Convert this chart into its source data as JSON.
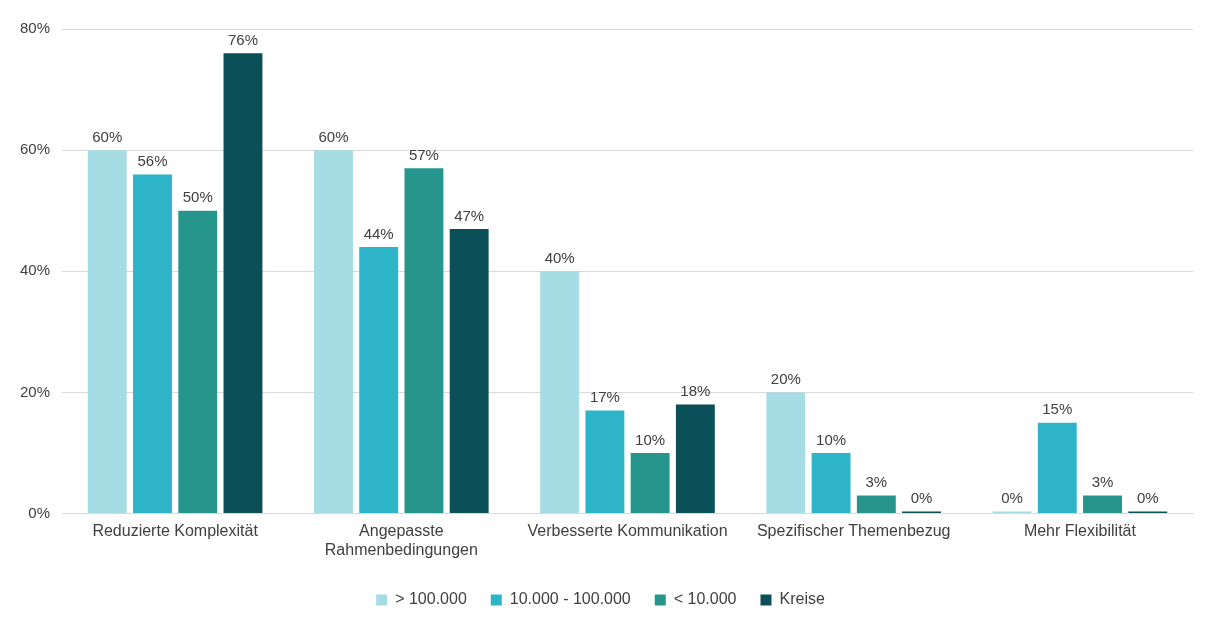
{
  "chart_data": {
    "type": "bar",
    "categories": [
      "Reduzierte Komplexität",
      "Angepasste Rahmenbedingungen",
      "Verbesserte Kommunikation",
      "Spezifischer Themenbezug",
      "Mehr Flexibilität"
    ],
    "series": [
      {
        "name": "> 100.000",
        "color": "#a6dce3",
        "values": [
          60,
          60,
          40,
          20,
          0
        ],
        "value_labels": [
          "60%",
          "60%",
          "40%",
          "20%",
          "0%"
        ]
      },
      {
        "name": "10.000 - 100.000",
        "color": "#2db4c8",
        "values": [
          56,
          44,
          17,
          10,
          15
        ],
        "value_labels": [
          "56%",
          "44%",
          "17%",
          "10%",
          "15%"
        ]
      },
      {
        "name": "< 10.000",
        "color": "#26968c",
        "values": [
          50,
          57,
          10,
          3,
          3
        ],
        "value_labels": [
          "50%",
          "57%",
          "10%",
          "3%",
          "3%"
        ]
      },
      {
        "name": "Kreise",
        "color": "#0b4f59",
        "values": [
          76,
          47,
          18,
          0,
          0
        ],
        "value_labels": [
          "76%",
          "47%",
          "18%",
          "0%",
          "0%"
        ]
      }
    ],
    "ylim": [
      0,
      80
    ],
    "yticks": [
      {
        "value": 0,
        "label": "0%"
      },
      {
        "value": 20,
        "label": "20%"
      },
      {
        "value": 40,
        "label": "40%"
      },
      {
        "value": 60,
        "label": "60%"
      },
      {
        "value": 80,
        "label": "80%"
      }
    ],
    "grid": "y",
    "legend": "bottom"
  }
}
